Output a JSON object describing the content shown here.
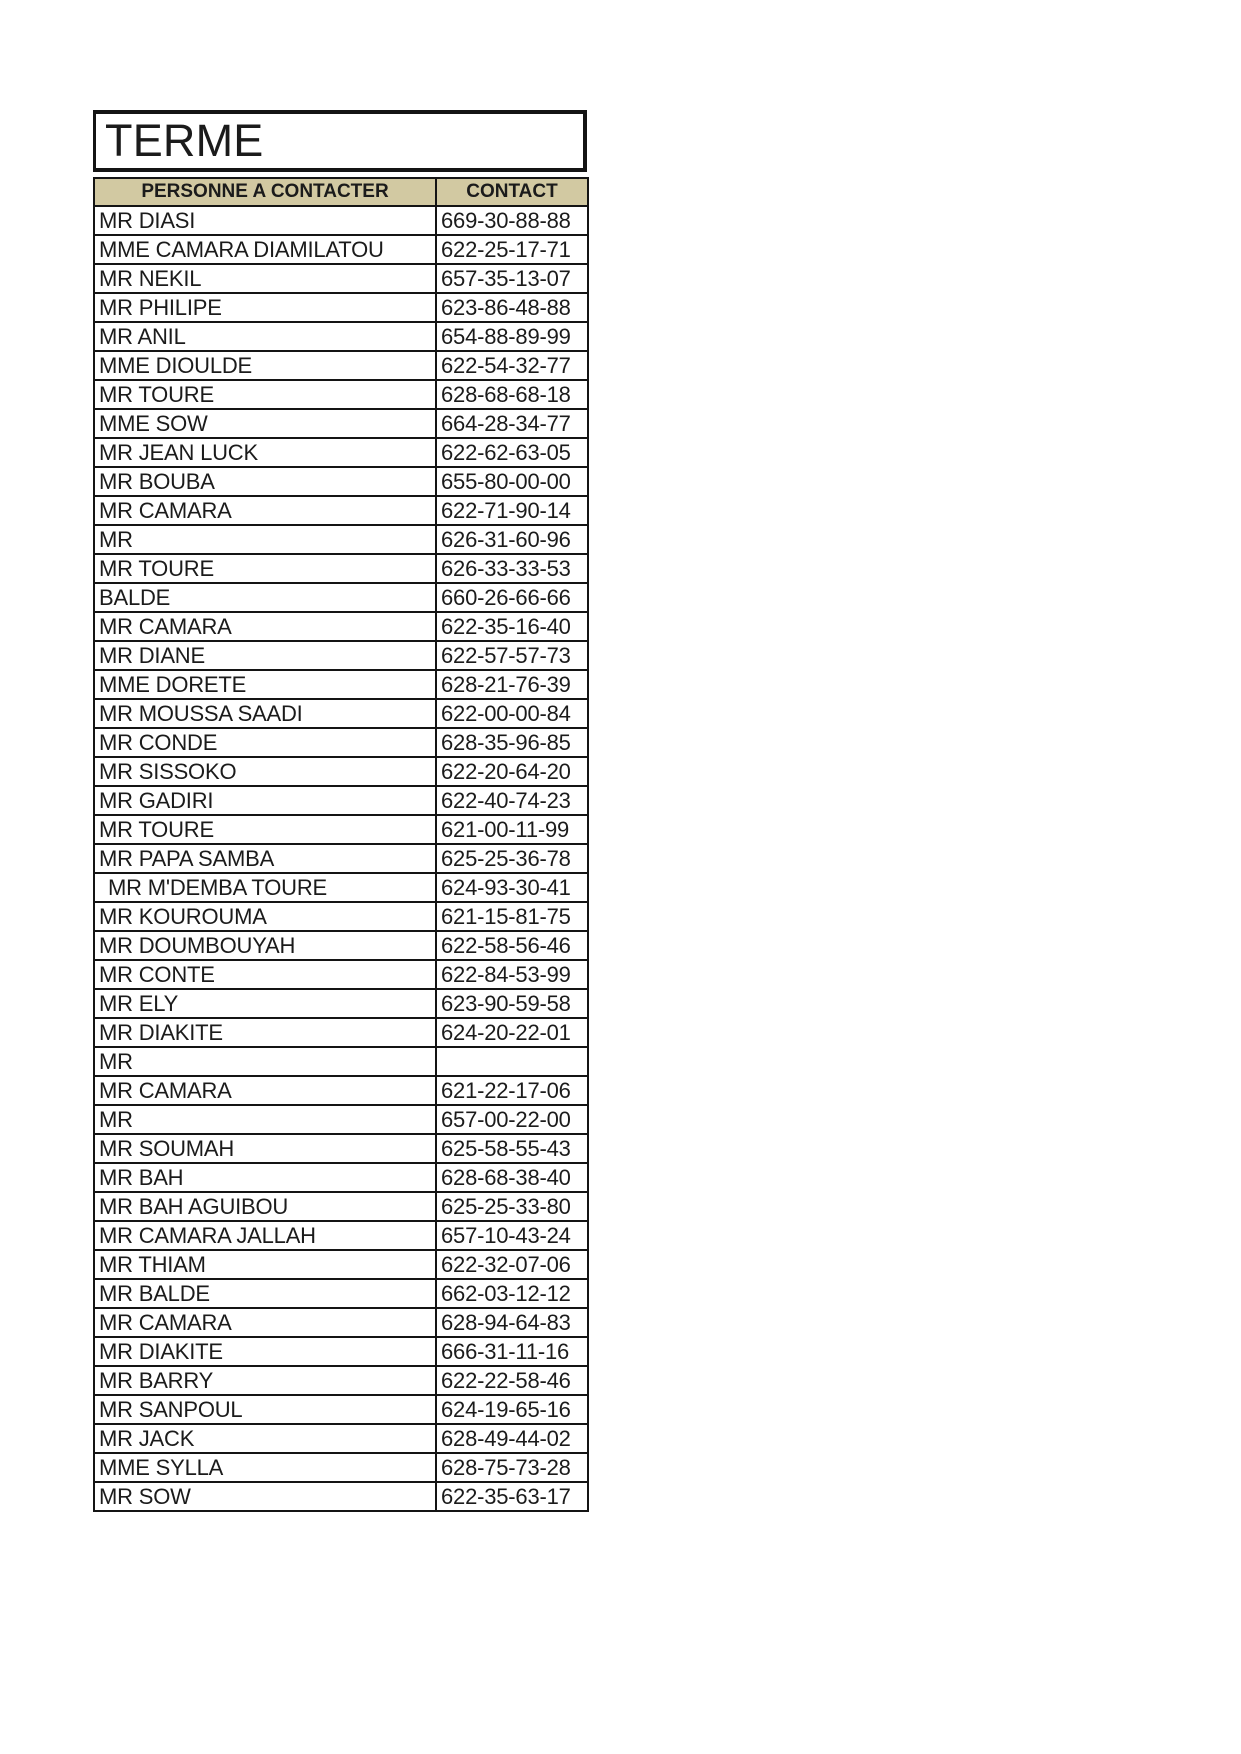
{
  "document": {
    "title": "TERME",
    "colors": {
      "header_bg": "#d2c9a2",
      "border": "#141414",
      "text": "#1b1b1b"
    },
    "table": {
      "columns": [
        "PERSONNE A CONTACTER",
        "CONTACT"
      ],
      "rows": [
        {
          "name": "MR DIASI",
          "contact": "669-30-88-88"
        },
        {
          "name": "MME CAMARA DIAMILATOU",
          "contact": "622-25-17-71"
        },
        {
          "name": "MR NEKIL",
          "contact": "657-35-13-07"
        },
        {
          "name": "MR PHILIPE",
          "contact": "623-86-48-88"
        },
        {
          "name": "MR ANIL",
          "contact": "654-88-89-99"
        },
        {
          "name": "MME DIOULDE",
          "contact": "622-54-32-77"
        },
        {
          "name": "MR TOURE",
          "contact": "628-68-68-18"
        },
        {
          "name": "MME SOW",
          "contact": "664-28-34-77"
        },
        {
          "name": "MR JEAN LUCK",
          "contact": "622-62-63-05"
        },
        {
          "name": "MR BOUBA",
          "contact": "655-80-00-00"
        },
        {
          "name": "MR CAMARA",
          "contact": "622-71-90-14"
        },
        {
          "name": "MR",
          "contact": "626-31-60-96"
        },
        {
          "name": "MR TOURE",
          "contact": "626-33-33-53"
        },
        {
          "name": "BALDE",
          "contact": "660-26-66-66"
        },
        {
          "name": "MR CAMARA",
          "contact": "622-35-16-40"
        },
        {
          "name": "MR DIANE",
          "contact": "622-57-57-73"
        },
        {
          "name": "MME DORETE",
          "contact": "628-21-76-39"
        },
        {
          "name": "MR MOUSSA SAADI",
          "contact": "622-00-00-84"
        },
        {
          "name": "MR CONDE",
          "contact": "628-35-96-85"
        },
        {
          "name": "MR SISSOKO",
          "contact": "622-20-64-20"
        },
        {
          "name": "MR GADIRI",
          "contact": "622-40-74-23"
        },
        {
          "name": "MR TOURE",
          "contact": "621-00-11-99"
        },
        {
          "name": "MR PAPA SAMBA",
          "contact": "625-25-36-78"
        },
        {
          "name": "MR M'DEMBA TOURE",
          "contact": "624-93-30-41",
          "indent": true
        },
        {
          "name": "MR KOUROUMA",
          "contact": "621-15-81-75"
        },
        {
          "name": "MR DOUMBOUYAH",
          "contact": "622-58-56-46"
        },
        {
          "name": "MR CONTE",
          "contact": "622-84-53-99"
        },
        {
          "name": "MR ELY",
          "contact": "623-90-59-58"
        },
        {
          "name": "MR DIAKITE",
          "contact": "624-20-22-01"
        },
        {
          "name": "MR",
          "contact": ""
        },
        {
          "name": "MR CAMARA",
          "contact": "621-22-17-06"
        },
        {
          "name": "MR",
          "contact": "657-00-22-00"
        },
        {
          "name": "MR SOUMAH",
          "contact": "625-58-55-43"
        },
        {
          "name": "MR BAH",
          "contact": "628-68-38-40"
        },
        {
          "name": "MR BAH AGUIBOU",
          "contact": "625-25-33-80"
        },
        {
          "name": "MR CAMARA JALLAH",
          "contact": "657-10-43-24"
        },
        {
          "name": "MR THIAM",
          "contact": "622-32-07-06"
        },
        {
          "name": "MR BALDE",
          "contact": "662-03-12-12"
        },
        {
          "name": "MR CAMARA",
          "contact": "628-94-64-83"
        },
        {
          "name": "MR DIAKITE",
          "contact": "666-31-11-16"
        },
        {
          "name": "MR BARRY",
          "contact": "622-22-58-46"
        },
        {
          "name": "MR SANPOUL",
          "contact": "624-19-65-16"
        },
        {
          "name": "MR JACK",
          "contact": "628-49-44-02"
        },
        {
          "name": "MME SYLLA",
          "contact": "628-75-73-28"
        },
        {
          "name": "MR SOW",
          "contact": "622-35-63-17"
        }
      ]
    }
  }
}
